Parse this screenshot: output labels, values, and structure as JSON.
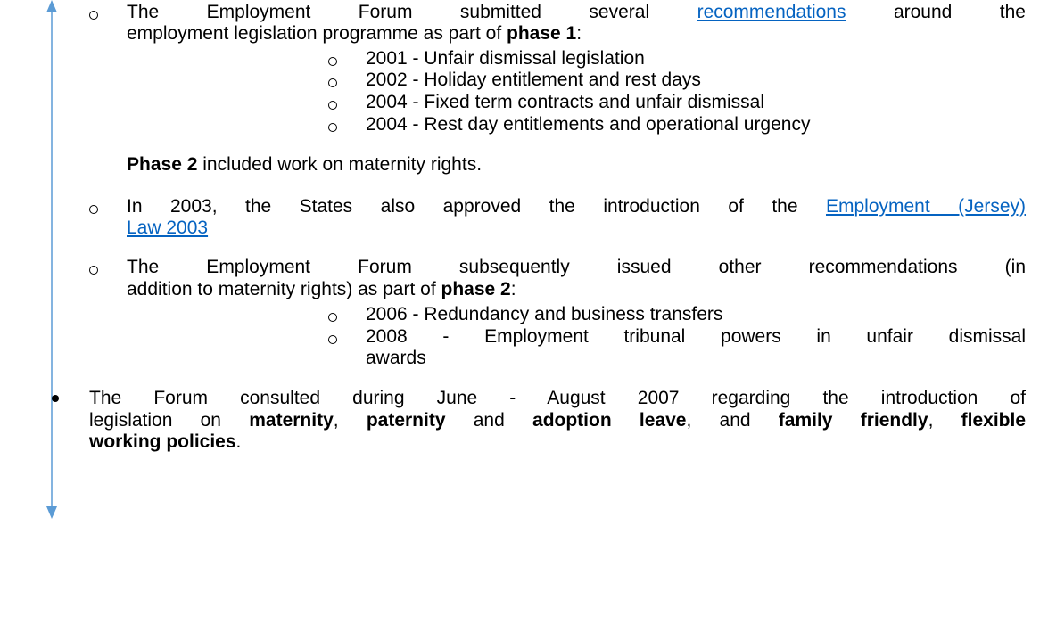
{
  "inner_list": [
    {
      "lines": [
        [
          {
            "text": "The Employment Forum submitted several "
          },
          {
            "text": "recommendations",
            "link": true
          },
          {
            "text": " around the"
          }
        ],
        [
          {
            "text": "employment legislation programme as part of "
          },
          {
            "text": "phase 1",
            "bold": true
          },
          {
            "text": ":"
          }
        ]
      ],
      "subitems": [
        {
          "lines": [
            [
              {
                "text": "2001 - Unfair dismissal legislation"
              }
            ]
          ]
        },
        {
          "lines": [
            [
              {
                "text": "2002 - Holiday entitlement and rest days"
              }
            ]
          ]
        },
        {
          "lines": [
            [
              {
                "text": "2004 - Fixed term contracts and unfair dismissal"
              }
            ]
          ]
        },
        {
          "lines": [
            [
              {
                "text": "2004 - Rest day entitlements and operational urgency"
              }
            ]
          ]
        }
      ]
    },
    {
      "lines": [
        [
          {
            "text": "In 2003, the States also approved the introduction of the "
          },
          {
            "text": "Employment (Jersey)",
            "link": true
          }
        ],
        [
          {
            "text": "Law 2003",
            "link": true
          }
        ]
      ]
    },
    {
      "lines": [
        [
          {
            "text": "The Employment Forum subsequently issued other recommendations (in"
          }
        ],
        [
          {
            "text": "addition to maternity rights) as part of "
          },
          {
            "text": "phase 2",
            "bold": true
          },
          {
            "text": ":"
          }
        ]
      ],
      "subitems": [
        {
          "lines": [
            [
              {
                "text": "2006 - Redundancy and business transfers"
              }
            ]
          ]
        },
        {
          "lines": [
            [
              {
                "text": "2008 - Employment tribunal powers in unfair dismissal"
              }
            ],
            [
              {
                "text": "awards"
              }
            ]
          ]
        }
      ]
    }
  ],
  "note": {
    "lines": [
      [
        {
          "text": "Phase 2",
          "bold": true
        },
        {
          "text": " included work on maternity rights."
        }
      ]
    ]
  },
  "outer_list": [
    {
      "lines": [
        [
          {
            "text": "The Forum consulted during June - August 2007 regarding the introduction of"
          }
        ],
        [
          {
            "text": "legislation on "
          },
          {
            "text": "maternity",
            "bold": true
          },
          {
            "text": ", "
          },
          {
            "text": "paternity",
            "bold": true
          },
          {
            "text": " and "
          },
          {
            "text": "adoption leave",
            "bold": true
          },
          {
            "text": ", and "
          },
          {
            "text": "family friendly",
            "bold": true
          },
          {
            "text": ", "
          },
          {
            "text": "flexible",
            "bold": true
          }
        ],
        [
          {
            "text": "working policies",
            "bold": true
          },
          {
            "text": "."
          }
        ]
      ]
    }
  ]
}
